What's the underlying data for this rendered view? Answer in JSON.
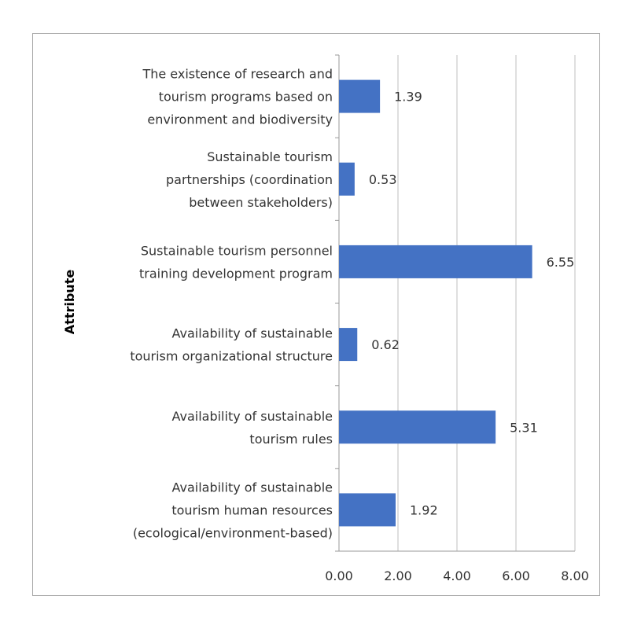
{
  "chart_data": {
    "type": "bar",
    "orientation": "horizontal",
    "ylabel": "Attribute",
    "xlabel": "",
    "title": "",
    "xlim": [
      0,
      8
    ],
    "x_ticks": [
      "0.00",
      "2.00",
      "4.00",
      "6.00",
      "8.00"
    ],
    "grid": true,
    "legend": "none",
    "bar_color": "#4472c4",
    "categories": [
      [
        "The existence of research and",
        "tourism programs based on",
        "environment and biodiversity"
      ],
      [
        "Sustainable tourism",
        "partnerships (coordination",
        "between stakeholders)"
      ],
      [
        "Sustainable tourism personnel",
        "training development program"
      ],
      [
        "Availability of sustainable",
        "tourism organizational structure"
      ],
      [
        "Availability of sustainable",
        "tourism rules"
      ],
      [
        "Availability of sustainable",
        "tourism human resources",
        "(ecological/environment-based)"
      ]
    ],
    "values": [
      1.39,
      0.53,
      6.55,
      0.62,
      5.31,
      1.92
    ],
    "value_labels": [
      "1.39",
      "0.53",
      "6.55",
      "0.62",
      "5.31",
      "1.92"
    ]
  }
}
